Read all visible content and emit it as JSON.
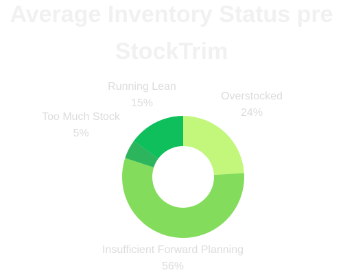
{
  "chart_data": {
    "type": "donut",
    "title": "Average Inventory Status pre StockTrim",
    "categories": [
      "Overstocked",
      "Insufficient Forward Planning",
      "Too Much Stock",
      "Running Lean"
    ],
    "values": [
      24,
      56,
      5,
      15
    ],
    "value_labels": [
      "24%",
      "56%",
      "5%",
      "15%"
    ],
    "colors": [
      "#c3f77c",
      "#84dc5c",
      "#2db55e",
      "#0fbf5c"
    ]
  }
}
